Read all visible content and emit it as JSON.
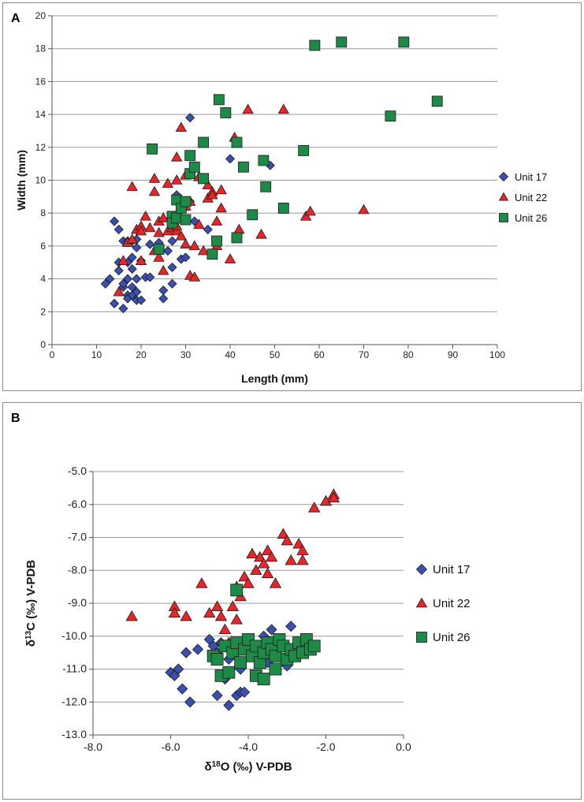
{
  "colors": {
    "unit17": "#3a4fb0",
    "unit22": "#e8262a",
    "unit26": "#1e8a47",
    "grid": "#9a9a9a",
    "axis": "#555555"
  },
  "chart_data": [
    {
      "panel": "A",
      "type": "scatter",
      "xlabel": "Length (mm)",
      "ylabel": "Width (mm)",
      "xlim": [
        0,
        100
      ],
      "ylim": [
        0,
        20
      ],
      "xticks": [
        "0",
        "10",
        "20",
        "30",
        "40",
        "50",
        "60",
        "70",
        "80",
        "90",
        "100"
      ],
      "yticks": [
        "0",
        "2",
        "4",
        "6",
        "8",
        "10",
        "12",
        "14",
        "16",
        "18",
        "20"
      ],
      "legend_position": "right",
      "series": [
        {
          "name": "Unit 17",
          "marker": "diamond",
          "points": [
            [
              12,
              3.7
            ],
            [
              13,
              4
            ],
            [
              14,
              7.5
            ],
            [
              14,
              2.5
            ],
            [
              15,
              5
            ],
            [
              15,
              4.5
            ],
            [
              15,
              7
            ],
            [
              16,
              3.5
            ],
            [
              16,
              6.3
            ],
            [
              16,
              2.2
            ],
            [
              16,
              3.7
            ],
            [
              17,
              6.3
            ],
            [
              17,
              4
            ],
            [
              17,
              3
            ],
            [
              17,
              5
            ],
            [
              17,
              2.8
            ],
            [
              18,
              5.3
            ],
            [
              18,
              4.6
            ],
            [
              18,
              6.3
            ],
            [
              18,
              3.5
            ],
            [
              18,
              3
            ],
            [
              19,
              5.9
            ],
            [
              19,
              4
            ],
            [
              19,
              2.7
            ],
            [
              19,
              6.4
            ],
            [
              19,
              3.2
            ],
            [
              20,
              5.1
            ],
            [
              20,
              2.7
            ],
            [
              21,
              4.1
            ],
            [
              22,
              4.1
            ],
            [
              22,
              6.1
            ],
            [
              24,
              6.2
            ],
            [
              25,
              3.3
            ],
            [
              25,
              2.8
            ],
            [
              26,
              5.7
            ],
            [
              27,
              6.3
            ],
            [
              27,
              4.7
            ],
            [
              27,
              3.7
            ],
            [
              28,
              9.1
            ],
            [
              29,
              5.2
            ],
            [
              30,
              5.3
            ],
            [
              30,
              7.6
            ],
            [
              31,
              13.8
            ],
            [
              31,
              8.7
            ],
            [
              32,
              7.5
            ],
            [
              35,
              7
            ],
            [
              40,
              11.3
            ],
            [
              49,
              10.9
            ]
          ]
        },
        {
          "name": "Unit 22",
          "marker": "triangle",
          "points": [
            [
              15,
              3.2
            ],
            [
              16,
              5.1
            ],
            [
              17,
              6.2
            ],
            [
              18,
              9.6
            ],
            [
              18,
              6.4
            ],
            [
              19,
              7
            ],
            [
              20,
              5.1
            ],
            [
              20,
              7.2
            ],
            [
              20,
              6.9
            ],
            [
              21,
              7.8
            ],
            [
              22,
              7.1
            ],
            [
              23,
              10.1
            ],
            [
              23,
              9.3
            ],
            [
              23,
              5.7
            ],
            [
              24,
              7.5
            ],
            [
              24,
              5.3
            ],
            [
              24,
              6.8
            ],
            [
              25,
              7.7
            ],
            [
              25,
              4.5
            ],
            [
              26,
              9.8
            ],
            [
              26,
              6.9
            ],
            [
              27,
              7.1
            ],
            [
              28,
              10
            ],
            [
              28,
              11.4
            ],
            [
              28,
              6.9
            ],
            [
              28,
              7.2
            ],
            [
              29,
              6.6
            ],
            [
              29,
              13.2
            ],
            [
              30,
              10.3
            ],
            [
              30,
              8.4
            ],
            [
              30,
              6.1
            ],
            [
              31,
              8.7
            ],
            [
              31,
              4.2
            ],
            [
              32,
              6
            ],
            [
              32,
              4.1
            ],
            [
              33,
              7.3
            ],
            [
              33,
              10.2
            ],
            [
              34,
              5.7
            ],
            [
              35,
              8.9
            ],
            [
              35,
              9.7
            ],
            [
              36,
              9.3
            ],
            [
              36,
              9.1
            ],
            [
              37,
              6
            ],
            [
              37,
              7.5
            ],
            [
              38,
              8.3
            ],
            [
              38,
              9.4
            ],
            [
              40,
              5.2
            ],
            [
              41,
              12.6
            ],
            [
              42,
              7
            ],
            [
              44,
              14.3
            ],
            [
              47,
              6.7
            ],
            [
              52,
              14.3
            ],
            [
              57,
              7.8
            ],
            [
              58,
              8.1
            ],
            [
              70,
              8.2
            ]
          ]
        },
        {
          "name": "Unit 26",
          "marker": "square",
          "points": [
            [
              22.5,
              11.9
            ],
            [
              24,
              5.8
            ],
            [
              27,
              7.8
            ],
            [
              27,
              7.4
            ],
            [
              28,
              8.8
            ],
            [
              28,
              7.7
            ],
            [
              29,
              8.3
            ],
            [
              30,
              7.6
            ],
            [
              30,
              8.7
            ],
            [
              31,
              11.5
            ],
            [
              31,
              10.4
            ],
            [
              32,
              10.8
            ],
            [
              34,
              12.3
            ],
            [
              34,
              10.1
            ],
            [
              36,
              5.5
            ],
            [
              37,
              6.3
            ],
            [
              37.5,
              14.9
            ],
            [
              39,
              14.1
            ],
            [
              41.5,
              12.3
            ],
            [
              41.5,
              6.5
            ],
            [
              43,
              10.8
            ],
            [
              45,
              7.9
            ],
            [
              47.5,
              11.2
            ],
            [
              48,
              9.6
            ],
            [
              52,
              8.3
            ],
            [
              56.5,
              11.8
            ],
            [
              59,
              18.2
            ],
            [
              65,
              18.4
            ],
            [
              76,
              13.9
            ],
            [
              79,
              18.4
            ],
            [
              86.5,
              14.8
            ]
          ]
        }
      ]
    },
    {
      "panel": "B",
      "type": "scatter",
      "xlabel": "δ18O (‰) V-PDB",
      "ylabel": "δ13C (‰) V-PDB",
      "xlim": [
        -8,
        0
      ],
      "ylim": [
        -13,
        -5
      ],
      "xticks": [
        "-8.0",
        "-6.0",
        "-4.0",
        "-2.0",
        "0.0"
      ],
      "yticks": [
        "-13.0",
        "-12.0",
        "-11.0",
        "-10.0",
        "-9.0",
        "-8.0",
        "-7.0",
        "-6.0",
        "-5.0"
      ],
      "legend_position": "right",
      "series": [
        {
          "name": "Unit 17",
          "marker": "diamond",
          "points": [
            [
              -6,
              -11.1
            ],
            [
              -5.9,
              -11.2
            ],
            [
              -5.8,
              -11
            ],
            [
              -5.7,
              -11.6
            ],
            [
              -5.6,
              -10.5
            ],
            [
              -5.5,
              -12
            ],
            [
              -5.3,
              -10.4
            ],
            [
              -5,
              -10.1
            ],
            [
              -4.9,
              -10.3
            ],
            [
              -4.8,
              -11.8
            ],
            [
              -4.8,
              -10.5
            ],
            [
              -4.7,
              -10.2
            ],
            [
              -4.6,
              -11.3
            ],
            [
              -4.5,
              -12.1
            ],
            [
              -4.5,
              -10.7
            ],
            [
              -4.4,
              -10.4
            ],
            [
              -4.3,
              -11.8
            ],
            [
              -4.2,
              -11.7
            ],
            [
              -4.2,
              -11
            ],
            [
              -4.1,
              -11.7
            ],
            [
              -4,
              -10.2
            ],
            [
              -3.9,
              -10.5
            ],
            [
              -3.7,
              -10.3
            ],
            [
              -3.6,
              -10
            ],
            [
              -3.5,
              -10.8
            ],
            [
              -3.4,
              -9.8
            ],
            [
              -3.2,
              -10.2
            ],
            [
              -3,
              -10.9
            ],
            [
              -2.9,
              -9.7
            ]
          ]
        },
        {
          "name": "Unit 22",
          "marker": "triangle",
          "points": [
            [
              -7,
              -9.4
            ],
            [
              -5.9,
              -9.1
            ],
            [
              -5.9,
              -9.3
            ],
            [
              -5.6,
              -9.4
            ],
            [
              -5.2,
              -8.4
            ],
            [
              -5,
              -9.3
            ],
            [
              -4.8,
              -9.1
            ],
            [
              -4.7,
              -9.4
            ],
            [
              -4.6,
              -9.8
            ],
            [
              -4.5,
              -10.2
            ],
            [
              -4.4,
              -9.1
            ],
            [
              -4.3,
              -9.5
            ],
            [
              -4.3,
              -8.5
            ],
            [
              -4.2,
              -8.8
            ],
            [
              -4.1,
              -8.2
            ],
            [
              -4,
              -8.4
            ],
            [
              -3.9,
              -7.5
            ],
            [
              -3.8,
              -8
            ],
            [
              -3.7,
              -7.6
            ],
            [
              -3.6,
              -7.8
            ],
            [
              -3.5,
              -7.4
            ],
            [
              -3.5,
              -8.1
            ],
            [
              -3.4,
              -7.6
            ],
            [
              -3.3,
              -8.4
            ],
            [
              -3.1,
              -6.9
            ],
            [
              -3,
              -7.1
            ],
            [
              -2.9,
              -7.7
            ],
            [
              -2.7,
              -7.2
            ],
            [
              -2.6,
              -7.4
            ],
            [
              -2.6,
              -7.7
            ],
            [
              -2.3,
              -6.1
            ],
            [
              -2,
              -5.9
            ],
            [
              -1.8,
              -5.7
            ],
            [
              -1.8,
              -5.8
            ]
          ]
        },
        {
          "name": "Unit 26",
          "marker": "square",
          "points": [
            [
              -4.9,
              -10.6
            ],
            [
              -4.8,
              -10.7
            ],
            [
              -4.7,
              -11.2
            ],
            [
              -4.6,
              -10.3
            ],
            [
              -4.5,
              -11.1
            ],
            [
              -4.4,
              -10.5
            ],
            [
              -4.3,
              -8.6
            ],
            [
              -4.3,
              -10.2
            ],
            [
              -4.2,
              -10.8
            ],
            [
              -4.1,
              -10.4
            ],
            [
              -4,
              -10.1
            ],
            [
              -3.9,
              -10.6
            ],
            [
              -3.8,
              -10.3
            ],
            [
              -3.8,
              -11.2
            ],
            [
              -3.7,
              -10.8
            ],
            [
              -3.6,
              -10.5
            ],
            [
              -3.6,
              -11.3
            ],
            [
              -3.5,
              -10.2
            ],
            [
              -3.4,
              -10.4
            ],
            [
              -3.3,
              -10.6
            ],
            [
              -3.3,
              -11
            ],
            [
              -3.2,
              -10.1
            ],
            [
              -3.1,
              -10.3
            ],
            [
              -3,
              -10.7
            ],
            [
              -2.9,
              -10.4
            ],
            [
              -2.8,
              -10.6
            ],
            [
              -2.7,
              -10.2
            ],
            [
              -2.6,
              -10.5
            ],
            [
              -2.5,
              -10.1
            ],
            [
              -2.4,
              -10.4
            ],
            [
              -2.3,
              -10.3
            ]
          ]
        }
      ]
    }
  ]
}
